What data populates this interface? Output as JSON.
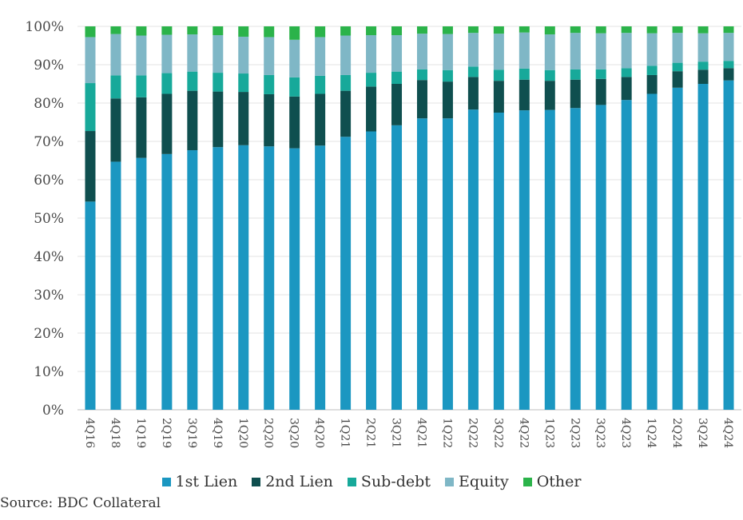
{
  "chart_data": {
    "type": "bar",
    "stacked": true,
    "ylim": [
      0,
      100
    ],
    "yticks": [
      "0%",
      "10%",
      "20%",
      "30%",
      "40%",
      "50%",
      "60%",
      "70%",
      "80%",
      "90%",
      "100%"
    ],
    "categories": [
      "4Q16",
      "4Q18",
      "1Q19",
      "2Q19",
      "3Q19",
      "4Q19",
      "1Q20",
      "2Q20",
      "3Q20",
      "4Q20",
      "1Q21",
      "2Q21",
      "3Q21",
      "4Q21",
      "1Q22",
      "2Q22",
      "3Q22",
      "4Q22",
      "1Q23",
      "2Q23",
      "3Q23",
      "4Q23",
      "1Q24",
      "2Q24",
      "3Q24",
      "4Q24"
    ],
    "series": [
      {
        "name": "1st Lien",
        "color": "#1b97c1",
        "values": [
          54.3,
          64.7,
          65.7,
          66.7,
          67.7,
          68.5,
          69.0,
          68.7,
          68.2,
          68.9,
          71.2,
          72.6,
          74.2,
          76.0,
          76.0,
          78.3,
          77.5,
          78.1,
          78.2,
          78.7,
          79.5,
          80.8,
          82.4,
          84.0,
          85.0,
          85.9
        ]
      },
      {
        "name": "2nd Lien",
        "color": "#0f4f4f",
        "values": [
          18.4,
          16.5,
          15.8,
          15.7,
          15.5,
          14.5,
          13.9,
          13.6,
          13.5,
          13.5,
          12.0,
          11.7,
          10.8,
          10.0,
          9.6,
          8.5,
          8.3,
          8.0,
          7.6,
          7.4,
          6.8,
          6.0,
          4.9,
          4.3,
          3.7,
          3.2
        ]
      },
      {
        "name": "Sub-debt",
        "color": "#17a99a",
        "values": [
          12.5,
          6.0,
          5.7,
          5.4,
          5.0,
          4.9,
          4.8,
          5.0,
          5.0,
          4.7,
          4.1,
          3.6,
          3.2,
          2.8,
          3.0,
          2.7,
          2.9,
          2.9,
          2.8,
          2.7,
          2.5,
          2.3,
          2.4,
          2.2,
          2.1,
          1.9
        ]
      },
      {
        "name": "Equity",
        "color": "#7fb7c6",
        "values": [
          12.0,
          10.8,
          10.4,
          10.0,
          9.7,
          9.8,
          9.6,
          9.9,
          9.8,
          10.1,
          10.3,
          9.8,
          9.5,
          9.3,
          9.4,
          8.8,
          9.4,
          9.4,
          9.3,
          9.5,
          9.4,
          9.2,
          8.5,
          7.8,
          7.4,
          7.3
        ]
      },
      {
        "name": "Other",
        "color": "#2bb34a",
        "values": [
          2.8,
          2.0,
          2.4,
          2.2,
          2.1,
          2.3,
          2.7,
          2.8,
          3.5,
          2.8,
          2.4,
          2.3,
          2.3,
          1.9,
          2.0,
          1.7,
          1.9,
          1.6,
          2.1,
          1.7,
          1.8,
          1.7,
          1.8,
          1.7,
          1.8,
          1.7
        ]
      }
    ]
  },
  "source": "Source: BDC Collateral"
}
